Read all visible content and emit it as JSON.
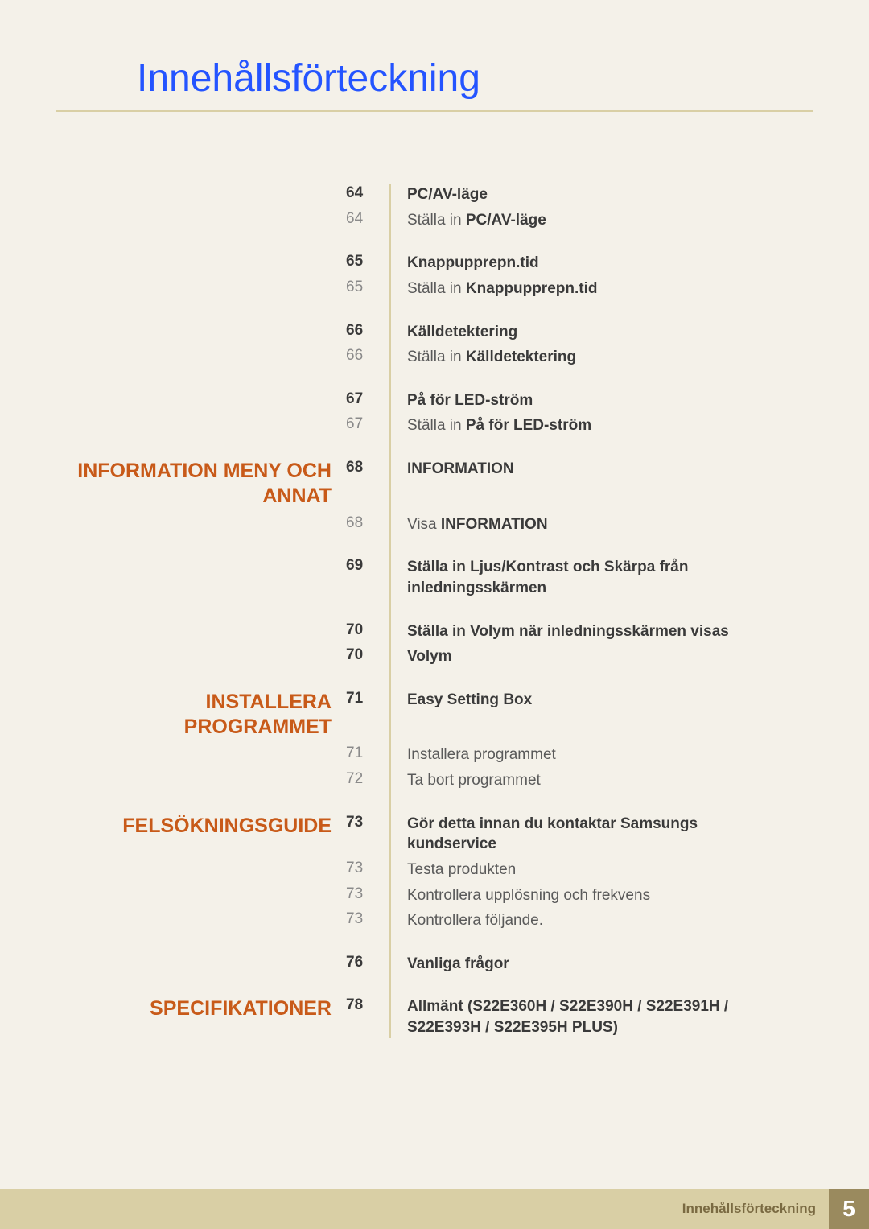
{
  "page": {
    "title": "Innehållsförteckning",
    "footer_label": "Innehållsförteckning",
    "footer_page": "5",
    "background_color": "#f4f1e9",
    "accent_color": "#c85a19",
    "title_color": "#2454ff",
    "divider_color": "#d9cfa5"
  },
  "toc": [
    {
      "chapter": "",
      "entries": [
        {
          "page": "64",
          "bold": true,
          "text": "PC/AV-läge"
        },
        {
          "page": "64",
          "bold": false,
          "text": "Ställa in <b>PC/AV-läge</b>"
        }
      ]
    },
    {
      "chapter": "",
      "entries": [
        {
          "page": "65",
          "bold": true,
          "text": "Knappupprepn.tid"
        },
        {
          "page": "65",
          "bold": false,
          "text": "Ställa in <b>Knappupprepn.tid</b>"
        }
      ]
    },
    {
      "chapter": "",
      "entries": [
        {
          "page": "66",
          "bold": true,
          "text": "Källdetektering"
        },
        {
          "page": "66",
          "bold": false,
          "text": "Ställa in <b>Källdetektering</b>"
        }
      ]
    },
    {
      "chapter": "",
      "entries": [
        {
          "page": "67",
          "bold": true,
          "text": "På för LED-ström"
        },
        {
          "page": "67",
          "bold": false,
          "text": "Ställa in <b>På för LED-ström</b>"
        }
      ]
    },
    {
      "chapter": "INFORMATION MENY OCH ANNAT",
      "entries": [
        {
          "page": "68",
          "bold": true,
          "text": "INFORMATION"
        },
        {
          "page": "68",
          "bold": false,
          "text": "Visa <b>INFORMATION</b>"
        }
      ]
    },
    {
      "chapter": "",
      "entries": [
        {
          "page": "69",
          "bold": true,
          "text": "Ställa in Ljus/Kontrast och Skärpa från inledningsskärmen"
        }
      ]
    },
    {
      "chapter": "",
      "entries": [
        {
          "page": "70",
          "bold": true,
          "text": "Ställa in Volym när inledningsskärmen visas"
        },
        {
          "page": "70",
          "bold": true,
          "text": "Volym"
        }
      ]
    },
    {
      "chapter": "INSTALLERA PROGRAMMET",
      "entries": [
        {
          "page": "71",
          "bold": true,
          "text": "Easy Setting Box"
        },
        {
          "page": "71",
          "bold": false,
          "text": "Installera programmet"
        },
        {
          "page": "72",
          "bold": false,
          "text": "Ta bort programmet"
        }
      ]
    },
    {
      "chapter": "FELSÖKNINGSGUIDE",
      "entries": [
        {
          "page": "73",
          "bold": true,
          "text": "Gör detta innan du kontaktar Samsungs kundservice"
        },
        {
          "page": "73",
          "bold": false,
          "text": "Testa produkten"
        },
        {
          "page": "73",
          "bold": false,
          "text": "Kontrollera upplösning och frekvens"
        },
        {
          "page": "73",
          "bold": false,
          "text": "Kontrollera följande."
        }
      ]
    },
    {
      "chapter": "",
      "entries": [
        {
          "page": "76",
          "bold": true,
          "text": "Vanliga frågor"
        }
      ]
    },
    {
      "chapter": "SPECIFIKATIONER",
      "entries": [
        {
          "page": "78",
          "bold": true,
          "text": "Allmänt (S22E360H / S22E390H / S22E391H / S22E393H / S22E395H PLUS)"
        }
      ]
    }
  ]
}
